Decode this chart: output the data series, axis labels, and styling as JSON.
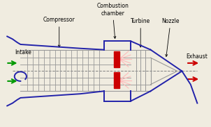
{
  "bg_color": "#f0ece0",
  "blue": "#2222aa",
  "gray_line": "#999999",
  "red": "#cc0000",
  "green": "#009900",
  "pink": "#ffbbbb",
  "labels": {
    "intake": "Intake",
    "compressor": "Compressor",
    "combustion": "Combustion\nchamber",
    "turbine": "Turbine",
    "nozzle": "Nozzle",
    "exhaust": "Exhaust"
  },
  "figsize": [
    3.02,
    1.83
  ],
  "dpi": 100
}
